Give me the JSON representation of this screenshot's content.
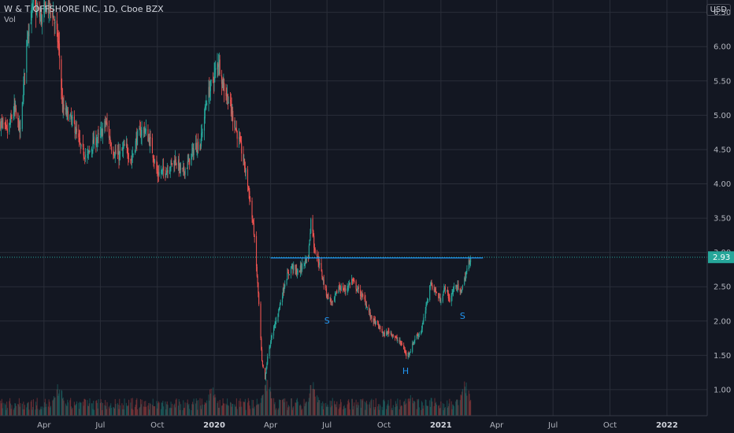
{
  "header": {
    "symbol_title": "W & T OFFSHORE INC, 1D, Cboe BZX",
    "volume_label": "Vol",
    "currency": "USD"
  },
  "colors": {
    "background": "#131722",
    "grid": "#2a2e39",
    "up": "#26a69a",
    "down": "#ef5350",
    "resistance_line": "#2196f3",
    "annotation": "#2196f3",
    "price_tag": "#26a69a"
  },
  "chart_data": {
    "type": "candlestick",
    "title": "W & T OFFSHORE INC, 1D, Cboe BZX",
    "x_range": [
      "2019-01-20",
      "2022-03-07"
    ],
    "y_range": [
      0.62,
      6.68
    ],
    "y_ticks": [
      1.0,
      1.5,
      2.0,
      2.5,
      3.0,
      3.5,
      4.0,
      4.5,
      5.0,
      5.5,
      6.0,
      6.5
    ],
    "y_tick_labels": [
      "1.00",
      "1.50",
      "2.00",
      "2.50",
      "3.00",
      "3.50",
      "4.00",
      "4.50",
      "5.00",
      "5.50",
      "6.00",
      "6.50"
    ],
    "x_ticks": [
      {
        "date": "2019-04-01",
        "label": "Apr",
        "major": false
      },
      {
        "date": "2019-07-01",
        "label": "Jul",
        "major": false
      },
      {
        "date": "2019-10-01",
        "label": "Oct",
        "major": false
      },
      {
        "date": "2020-01-01",
        "label": "2020",
        "major": true
      },
      {
        "date": "2020-04-01",
        "label": "Apr",
        "major": false
      },
      {
        "date": "2020-07-01",
        "label": "Jul",
        "major": false
      },
      {
        "date": "2020-10-01",
        "label": "Oct",
        "major": false
      },
      {
        "date": "2021-01-01",
        "label": "2021",
        "major": true
      },
      {
        "date": "2021-04-01",
        "label": "Apr",
        "major": false
      },
      {
        "date": "2021-07-01",
        "label": "Jul",
        "major": false
      },
      {
        "date": "2021-10-01",
        "label": "Oct",
        "major": false
      },
      {
        "date": "2022-01-01",
        "label": "2022",
        "major": true
      }
    ],
    "last_price": 2.93,
    "last_price_label": "2.93",
    "price_path": [
      [
        "2019-01-20",
        4.9
      ],
      [
        "2019-02-01",
        4.75
      ],
      [
        "2019-02-12",
        5.1
      ],
      [
        "2019-02-22",
        4.75
      ],
      [
        "2019-03-05",
        6.2
      ],
      [
        "2019-03-15",
        6.6
      ],
      [
        "2019-03-28",
        6.4
      ],
      [
        "2019-04-05",
        6.6
      ],
      [
        "2019-04-15",
        6.5
      ],
      [
        "2019-04-25",
        6.0
      ],
      [
        "2019-05-01",
        5.1
      ],
      [
        "2019-05-10",
        5.0
      ],
      [
        "2019-05-20",
        4.85
      ],
      [
        "2019-05-31",
        4.5
      ],
      [
        "2019-06-10",
        4.4
      ],
      [
        "2019-06-20",
        4.6
      ],
      [
        "2019-07-01",
        4.7
      ],
      [
        "2019-07-10",
        4.9
      ],
      [
        "2019-07-20",
        4.5
      ],
      [
        "2019-07-31",
        4.4
      ],
      [
        "2019-08-10",
        4.55
      ],
      [
        "2019-08-20",
        4.35
      ],
      [
        "2019-08-30",
        4.7
      ],
      [
        "2019-09-10",
        4.8
      ],
      [
        "2019-09-20",
        4.6
      ],
      [
        "2019-10-01",
        4.15
      ],
      [
        "2019-10-15",
        4.2
      ],
      [
        "2019-10-31",
        4.35
      ],
      [
        "2019-11-10",
        4.15
      ],
      [
        "2019-11-20",
        4.3
      ],
      [
        "2019-12-01",
        4.55
      ],
      [
        "2019-12-10",
        4.6
      ],
      [
        "2019-12-20",
        5.25
      ],
      [
        "2019-12-31",
        5.55
      ],
      [
        "2020-01-08",
        5.8
      ],
      [
        "2020-01-15",
        5.45
      ],
      [
        "2020-01-25",
        5.2
      ],
      [
        "2020-02-05",
        4.8
      ],
      [
        "2020-02-15",
        4.45
      ],
      [
        "2020-02-25",
        3.95
      ],
      [
        "2020-03-05",
        3.3
      ],
      [
        "2020-03-12",
        2.4
      ],
      [
        "2020-03-18",
        1.4
      ],
      [
        "2020-03-23",
        1.15
      ],
      [
        "2020-03-28",
        1.55
      ],
      [
        "2020-04-05",
        1.85
      ],
      [
        "2020-04-15",
        2.2
      ],
      [
        "2020-04-25",
        2.6
      ],
      [
        "2020-05-05",
        2.8
      ],
      [
        "2020-05-15",
        2.7
      ],
      [
        "2020-05-25",
        2.85
      ],
      [
        "2020-06-01",
        2.95
      ],
      [
        "2020-06-06",
        3.6
      ],
      [
        "2020-06-10",
        3.1
      ],
      [
        "2020-06-18",
        2.85
      ],
      [
        "2020-06-30",
        2.4
      ],
      [
        "2020-07-10",
        2.25
      ],
      [
        "2020-07-20",
        2.5
      ],
      [
        "2020-07-31",
        2.45
      ],
      [
        "2020-08-10",
        2.6
      ],
      [
        "2020-08-20",
        2.45
      ],
      [
        "2020-08-31",
        2.3
      ],
      [
        "2020-09-10",
        2.05
      ],
      [
        "2020-09-20",
        1.95
      ],
      [
        "2020-10-01",
        1.8
      ],
      [
        "2020-10-10",
        1.85
      ],
      [
        "2020-10-20",
        1.75
      ],
      [
        "2020-10-31",
        1.65
      ],
      [
        "2020-11-06",
        1.5
      ],
      [
        "2020-11-12",
        1.55
      ],
      [
        "2020-11-20",
        1.75
      ],
      [
        "2020-11-30",
        1.85
      ],
      [
        "2020-12-08",
        2.2
      ],
      [
        "2020-12-15",
        2.55
      ],
      [
        "2020-12-22",
        2.45
      ],
      [
        "2020-12-31",
        2.3
      ],
      [
        "2021-01-08",
        2.5
      ],
      [
        "2021-01-15",
        2.3
      ],
      [
        "2021-01-25",
        2.55
      ],
      [
        "2021-02-01",
        2.4
      ],
      [
        "2021-02-08",
        2.6
      ],
      [
        "2021-02-15",
        2.85
      ],
      [
        "2021-02-18",
        2.93
      ]
    ],
    "resistance": {
      "start": "2020-04-01",
      "end": "2021-03-10",
      "price": 2.92
    },
    "annotations": [
      {
        "text": "S",
        "date": "2020-07-01",
        "price": 1.96
      },
      {
        "text": "H",
        "date": "2020-11-05",
        "price": 1.23
      },
      {
        "text": "S",
        "date": "2021-02-05",
        "price": 2.03
      }
    ],
    "volume": {
      "range": [
        "2019-01-20",
        "2021-02-18"
      ],
      "typical_level": 0.3,
      "peaks": [
        {
          "date": "2019-04-25",
          "level": 0.8
        },
        {
          "date": "2019-12-28",
          "level": 0.7
        },
        {
          "date": "2020-03-25",
          "level": 0.95
        },
        {
          "date": "2020-06-08",
          "level": 0.9
        },
        {
          "date": "2020-11-10",
          "level": 0.6
        },
        {
          "date": "2021-02-10",
          "level": 0.85
        }
      ]
    }
  }
}
